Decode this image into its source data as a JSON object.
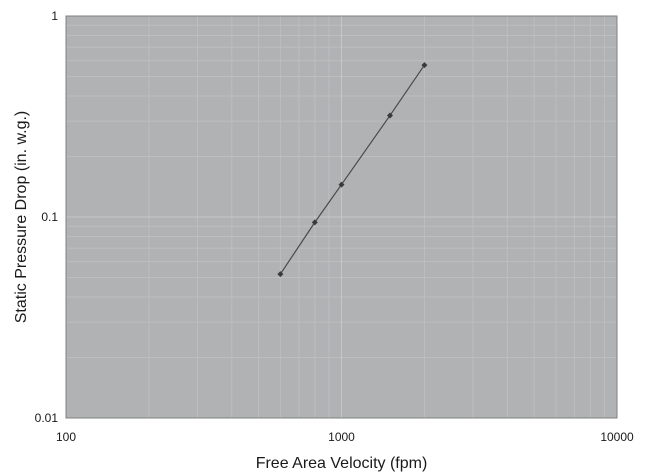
{
  "chart_data": {
    "type": "line",
    "title": "",
    "xlabel": "Free Area Velocity (fpm)",
    "ylabel": "Static Pressure Drop (in. w.g.)",
    "xscale": "log",
    "yscale": "log",
    "xlim": [
      100,
      10000
    ],
    "ylim": [
      0.01,
      1
    ],
    "x_ticks": [
      100,
      1000,
      10000
    ],
    "x_tick_labels": [
      "100",
      "1000",
      "10000"
    ],
    "y_ticks": [
      0.01,
      0.1,
      1
    ],
    "y_tick_labels": [
      "0.01",
      "0.1",
      "1"
    ],
    "grid": true,
    "legend": "none",
    "colors": {
      "plot_background": "#b1b2b4",
      "grid_major": "#c6c7c9",
      "grid_minor": "#bdbec0",
      "line": "#4a4a4a",
      "marker": "#3a3a3a"
    },
    "series": [
      {
        "x": [
          600,
          800,
          1000,
          1500,
          2000
        ],
        "y": [
          0.052,
          0.094,
          0.145,
          0.32,
          0.57
        ]
      }
    ]
  }
}
